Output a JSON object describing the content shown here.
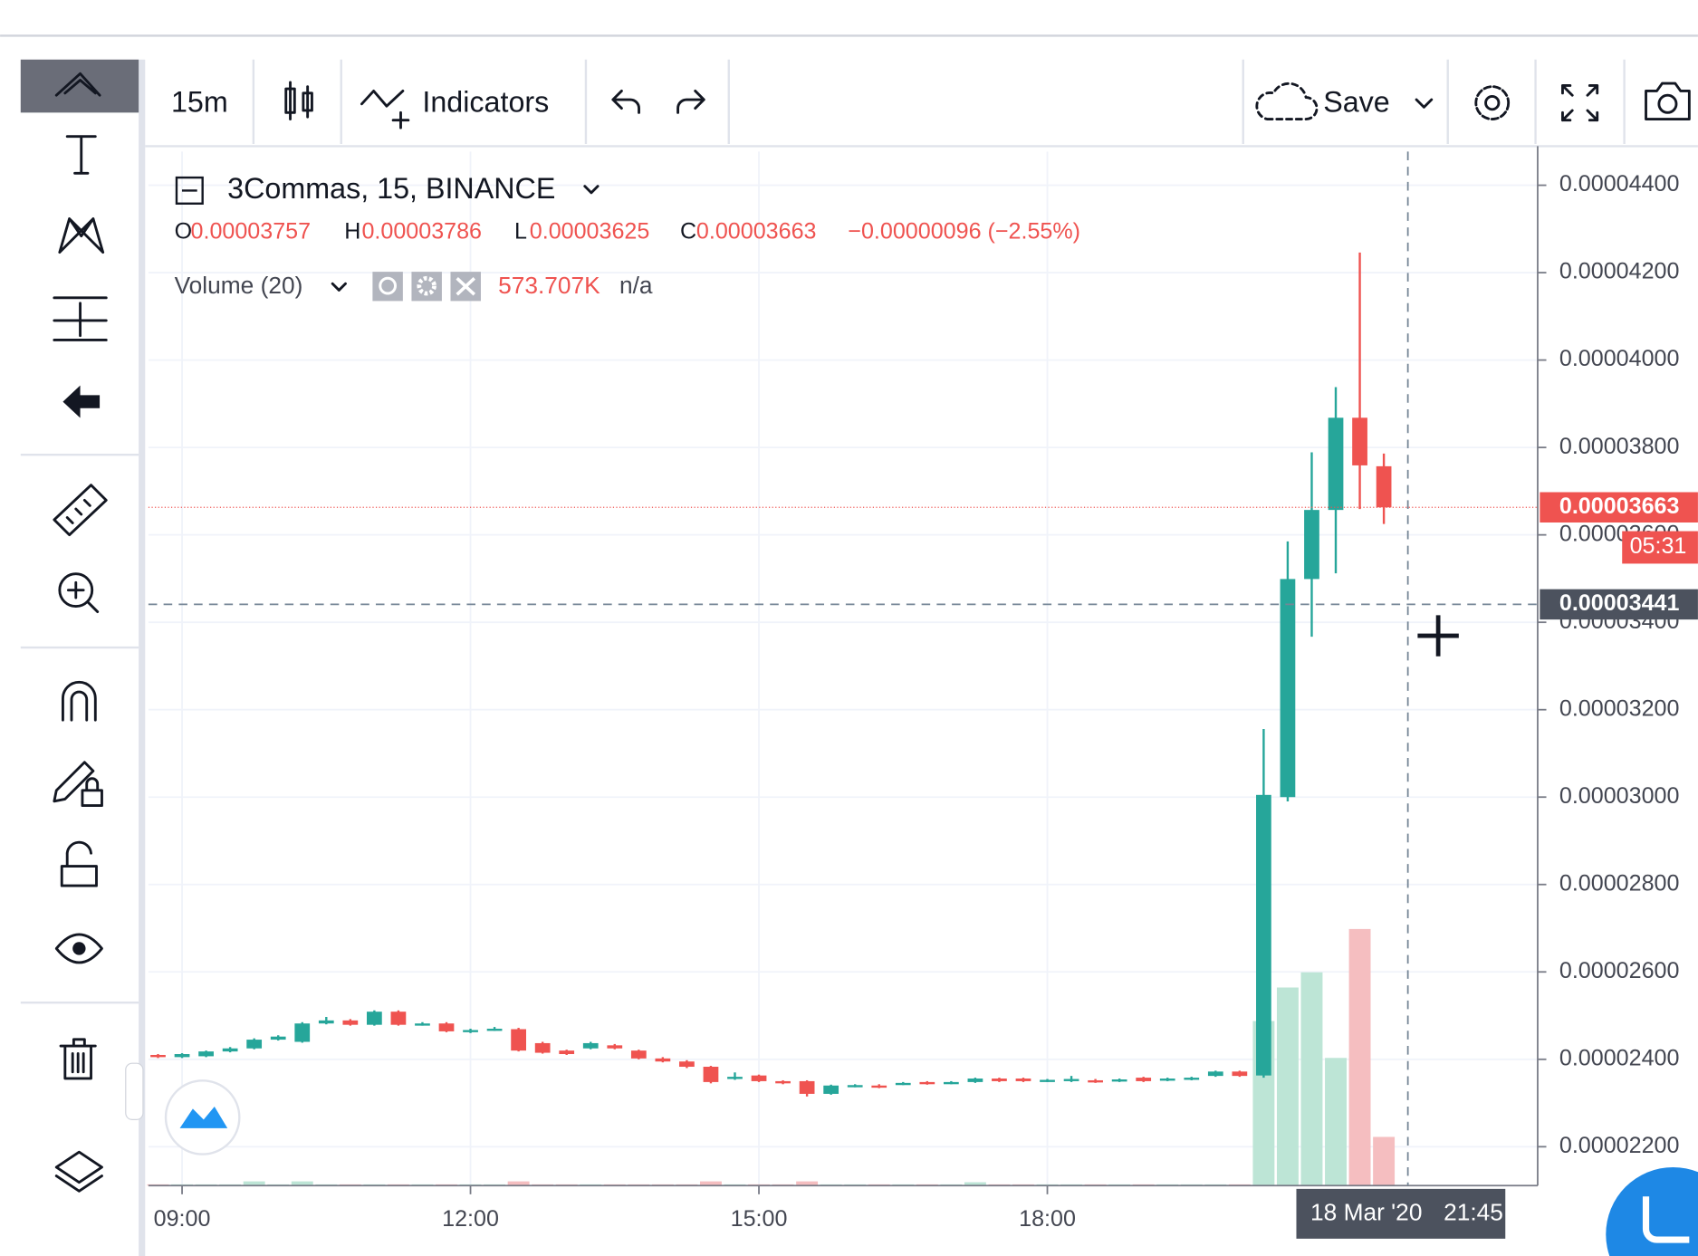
{
  "toolbar": {
    "interval": "15m",
    "indicators": "Indicators",
    "save": "Save"
  },
  "chart_data": {
    "type": "candlestick",
    "symbol": "3Commas, 15, BINANCE",
    "x": [
      8.75,
      9,
      9.25,
      9.5,
      9.75,
      10,
      10.25,
      10.5,
      10.75,
      11,
      11.25,
      11.5,
      11.75,
      12,
      12.25,
      12.5,
      12.75,
      13,
      13.25,
      13.5,
      13.75,
      14,
      14.25,
      14.5,
      14.75,
      15,
      15.25,
      15.5,
      15.75,
      16,
      16.25,
      16.5,
      16.75,
      17,
      17.25,
      17.5,
      17.75,
      18,
      18.25,
      18.5,
      18.75,
      19,
      19.25,
      19.5,
      19.75,
      20,
      20.25,
      20.5,
      20.75,
      21,
      21.25,
      21.5
    ],
    "open": [
      2.41e-05,
      2.405e-05,
      2.407e-05,
      2.418e-05,
      2.425e-05,
      2.445e-05,
      2.44e-05,
      2.482e-05,
      2.489e-05,
      2.479e-05,
      2.509e-05,
      2.479e-05,
      2.482e-05,
      2.464e-05,
      2.467e-05,
      2.469e-05,
      2.437e-05,
      2.42e-05,
      2.425e-05,
      2.432e-05,
      2.42e-05,
      2.402e-05,
      2.395e-05,
      2.383e-05,
      2.355e-05,
      2.363e-05,
      2.35e-05,
      2.35e-05,
      2.321e-05,
      2.338e-05,
      2.34e-05,
      2.343e-05,
      2.348e-05,
      2.345e-05,
      2.348e-05,
      2.356e-05,
      2.356e-05,
      2.35e-05,
      2.35e-05,
      2.352e-05,
      2.35e-05,
      2.358e-05,
      2.352e-05,
      2.354e-05,
      2.362e-05,
      2.372e-05,
      2.363e-05,
      3e-05,
      3.499e-05,
      3.657e-05,
      3.868e-05,
      3.757e-05
    ],
    "high": [
      2.412e-05,
      2.414e-05,
      2.42e-05,
      2.428e-05,
      2.448e-05,
      2.455e-05,
      2.485e-05,
      2.497e-05,
      2.492e-05,
      2.512e-05,
      2.512e-05,
      2.485e-05,
      2.485e-05,
      2.47e-05,
      2.474e-05,
      2.472e-05,
      2.44e-05,
      2.422e-05,
      2.44e-05,
      2.435e-05,
      2.422e-05,
      2.405e-05,
      2.398e-05,
      2.385e-05,
      2.37e-05,
      2.365e-05,
      2.352e-05,
      2.352e-05,
      2.342e-05,
      2.343e-05,
      2.343e-05,
      2.348e-05,
      2.35e-05,
      2.35e-05,
      2.358e-05,
      2.358e-05,
      2.358e-05,
      2.355e-05,
      2.362e-05,
      2.355e-05,
      2.356e-05,
      2.36e-05,
      2.358e-05,
      2.36e-05,
      2.374e-05,
      2.374e-05,
      3.156e-05,
      3.585e-05,
      3.789e-05,
      3.938e-05,
      4.246e-05,
      3.786e-05
    ],
    "low": [
      2.403e-05,
      2.403e-05,
      2.405e-05,
      2.416e-05,
      2.423e-05,
      2.443e-05,
      2.438e-05,
      2.48e-05,
      2.477e-05,
      2.477e-05,
      2.477e-05,
      2.477e-05,
      2.462e-05,
      2.46e-05,
      2.465e-05,
      2.418e-05,
      2.413e-05,
      2.41e-05,
      2.423e-05,
      2.423e-05,
      2.4e-05,
      2.393e-05,
      2.38e-05,
      2.345e-05,
      2.353e-05,
      2.348e-05,
      2.343e-05,
      2.315e-05,
      2.319e-05,
      2.336e-05,
      2.334e-05,
      2.341e-05,
      2.342e-05,
      2.343e-05,
      2.346e-05,
      2.348e-05,
      2.348e-05,
      2.348e-05,
      2.348e-05,
      2.346e-05,
      2.348e-05,
      2.348e-05,
      2.35e-05,
      2.352e-05,
      2.36e-05,
      2.36e-05,
      2.358e-05,
      2.99e-05,
      3.367e-05,
      3.512e-05,
      3.659e-05,
      3.625e-05
    ],
    "close": [
      2.405e-05,
      2.412e-05,
      2.418e-05,
      2.425e-05,
      2.445e-05,
      2.452e-05,
      2.482e-05,
      2.489e-05,
      2.479e-05,
      2.509e-05,
      2.479e-05,
      2.482e-05,
      2.464e-05,
      2.467e-05,
      2.47e-05,
      2.42e-05,
      2.415e-05,
      2.412e-05,
      2.437e-05,
      2.425e-05,
      2.402e-05,
      2.395e-05,
      2.383e-05,
      2.348e-05,
      2.36e-05,
      2.35e-05,
      2.345e-05,
      2.321e-05,
      2.34e-05,
      2.341e-05,
      2.336e-05,
      2.346e-05,
      2.344e-05,
      2.348e-05,
      2.356e-05,
      2.35e-05,
      2.35e-05,
      2.353e-05,
      2.355e-05,
      2.348e-05,
      2.354e-05,
      2.35e-05,
      2.356e-05,
      2.358e-05,
      2.372e-05,
      2.362e-05,
      3.005e-05,
      3.499e-05,
      3.657e-05,
      3.868e-05,
      3.759e-05,
      3.663e-05
    ],
    "ohlc_labels": [
      "O",
      "H",
      "L",
      "C"
    ],
    "change_label": "−0.00000096 (−2.55%)",
    "colors": {
      "up": "#26a69a",
      "down": "#ef5350"
    },
    "volume": {
      "name": "Volume (20)",
      "values": [
        15,
        15,
        15,
        15,
        50,
        15,
        50,
        15,
        15,
        15,
        15,
        15,
        15,
        15,
        15,
        50,
        15,
        15,
        15,
        15,
        15,
        15,
        15,
        50,
        15,
        15,
        15,
        50,
        15,
        15,
        15,
        15,
        15,
        15,
        40,
        15,
        15,
        15,
        15,
        15,
        15,
        15,
        15,
        15,
        15,
        15,
        1938,
        2333,
        2512,
        1504,
        3022,
        573.707
      ],
      "last_value_label": "573.707K",
      "extra_label": "n/a",
      "colors": {
        "up": "#bde5d6",
        "down": "#f5bec0"
      }
    },
    "xlim": [
      8.65,
      23.1
    ],
    "xticks": [
      {
        "value": 9,
        "label": "09:00"
      },
      {
        "value": 12,
        "label": "12:00"
      },
      {
        "value": 15,
        "label": "15:00"
      },
      {
        "value": 18,
        "label": "18:00"
      }
    ],
    "ylim": [
      2.111e-05,
      4.477e-05
    ],
    "yticks": [
      {
        "value": 2.2e-05,
        "label": "0.00002200"
      },
      {
        "value": 2.4e-05,
        "label": "0.00002400"
      },
      {
        "value": 2.6e-05,
        "label": "0.00002600"
      },
      {
        "value": 2.8e-05,
        "label": "0.00002800"
      },
      {
        "value": 3e-05,
        "label": "0.00003000"
      },
      {
        "value": 3.2e-05,
        "label": "0.00003200"
      },
      {
        "value": 3.4e-05,
        "label": "0.00003400"
      },
      {
        "value": 3.6e-05,
        "label": "0.00003600"
      },
      {
        "value": 3.8e-05,
        "label": "0.00003800"
      },
      {
        "value": 4e-05,
        "label": "0.00004000"
      },
      {
        "value": 4.2e-05,
        "label": "0.00004200"
      },
      {
        "value": 4.4e-05,
        "label": "0.00004400"
      }
    ],
    "grid": true,
    "countdown": "05:31",
    "crosshair": {
      "x": 21.75,
      "y": 3.441e-05,
      "date_label": "18 Mar '20",
      "time_label": "21:45"
    }
  }
}
